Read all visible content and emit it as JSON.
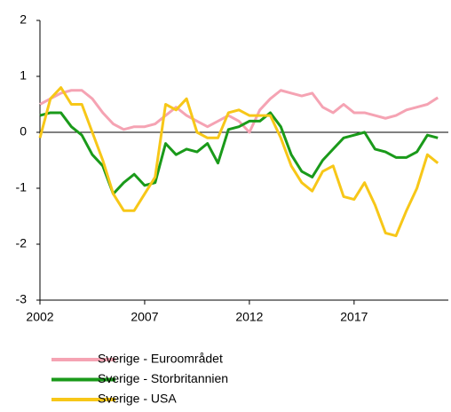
{
  "chart_data": {
    "type": "line",
    "x": [
      2002,
      2002.5,
      2003,
      2003.5,
      2004,
      2004.5,
      2005,
      2005.5,
      2006,
      2006.5,
      2007,
      2007.5,
      2008,
      2008.5,
      2009,
      2009.5,
      2010,
      2010.5,
      2011,
      2011.5,
      2012,
      2012.5,
      2013,
      2013.5,
      2014,
      2014.5,
      2015,
      2015.5,
      2016,
      2016.5,
      2017,
      2017.5,
      2018,
      2018.5,
      2019,
      2019.5,
      2020,
      2020.5,
      2021
    ],
    "series": [
      {
        "name": "Sverige - Euroområdet",
        "color": "#f5a3b3",
        "values": [
          0.5,
          0.6,
          0.7,
          0.75,
          0.75,
          0.6,
          0.35,
          0.15,
          0.05,
          0.1,
          0.1,
          0.15,
          0.3,
          0.45,
          0.3,
          0.2,
          0.1,
          0.2,
          0.3,
          0.2,
          0.0,
          0.4,
          0.6,
          0.75,
          0.7,
          0.65,
          0.7,
          0.45,
          0.35,
          0.5,
          0.35,
          0.35,
          0.3,
          0.25,
          0.3,
          0.4,
          0.45,
          0.5,
          0.62
        ]
      },
      {
        "name": "Sverige - Storbritannien",
        "color": "#1a9a1a",
        "values": [
          0.3,
          0.35,
          0.35,
          0.1,
          -0.05,
          -0.4,
          -0.6,
          -1.1,
          -0.9,
          -0.75,
          -0.95,
          -0.9,
          -0.2,
          -0.4,
          -0.3,
          -0.35,
          -0.2,
          -0.55,
          0.05,
          0.1,
          0.2,
          0.2,
          0.35,
          0.1,
          -0.4,
          -0.7,
          -0.8,
          -0.5,
          -0.3,
          -0.1,
          -0.05,
          0.0,
          -0.3,
          -0.35,
          -0.45,
          -0.45,
          -0.35,
          -0.05,
          -0.1
        ]
      },
      {
        "name": "Sverige - USA",
        "color": "#f7c718",
        "values": [
          -0.1,
          0.6,
          0.8,
          0.5,
          0.5,
          0.0,
          -0.5,
          -1.1,
          -1.4,
          -1.4,
          -1.1,
          -0.8,
          0.5,
          0.4,
          0.6,
          0.0,
          -0.1,
          -0.1,
          0.35,
          0.4,
          0.3,
          0.3,
          0.3,
          -0.1,
          -0.6,
          -0.9,
          -1.05,
          -0.7,
          -0.6,
          -1.15,
          -1.2,
          -0.9,
          -1.3,
          -1.8,
          -1.85,
          -1.4,
          -1.0,
          -0.4,
          -0.55
        ]
      }
    ],
    "xlim": [
      2002,
      2021.5
    ],
    "xticks": [
      2002,
      2007,
      2012,
      2017
    ],
    "ylim": [
      -3,
      2
    ],
    "yticks": [
      -3,
      -2,
      -1,
      0,
      1,
      2
    ],
    "grid": false
  }
}
